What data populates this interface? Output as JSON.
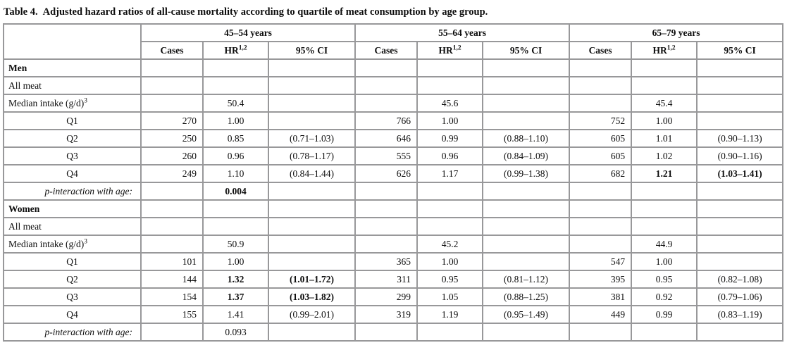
{
  "title": {
    "label": "Table 4.",
    "text": "Adjusted hazard ratios of all-cause mortality according to quartile of meat consumption by age group."
  },
  "table": {
    "age_groups": [
      "45–54 years",
      "55–64 years",
      "65–79 years"
    ],
    "sub_headers": {
      "cases": "Cases",
      "hr": "HR",
      "hr_sup": "1,2",
      "ci": "95% CI"
    },
    "rows": [
      {
        "label": "Men",
        "style": "section",
        "cells": [
          "",
          "",
          "",
          "",
          "",
          "",
          "",
          "",
          ""
        ]
      },
      {
        "label": "All meat",
        "style": "plain",
        "cells": [
          "",
          "",
          "",
          "",
          "",
          "",
          "",
          "",
          ""
        ]
      },
      {
        "label": "Median intake (g/d)",
        "label_sup": "3",
        "style": "plain",
        "cells": [
          "",
          "50.4",
          "",
          "",
          "45.6",
          "",
          "",
          "45.4",
          ""
        ]
      },
      {
        "label": "Q1",
        "style": "quartile",
        "cells": [
          "270",
          "1.00",
          "",
          "766",
          "1.00",
          "",
          "752",
          "1.00",
          ""
        ]
      },
      {
        "label": "Q2",
        "style": "quartile",
        "cells": [
          "250",
          "0.85",
          "(0.71–1.03)",
          "646",
          "0.99",
          "(0.88–1.10)",
          "605",
          "1.01",
          "(0.90–1.13)"
        ]
      },
      {
        "label": "Q3",
        "style": "quartile",
        "cells": [
          "260",
          "0.96",
          "(0.78–1.17)",
          "555",
          "0.96",
          "(0.84–1.09)",
          "605",
          "1.02",
          "(0.90–1.16)"
        ]
      },
      {
        "label": "Q4",
        "style": "quartile",
        "cells": [
          "249",
          "1.10",
          "(0.84–1.44)",
          "626",
          "1.17",
          "(0.99–1.38)",
          "682",
          "1.21",
          "(1.03–1.41)"
        ],
        "bold": [
          7,
          8
        ]
      },
      {
        "label": "p-interaction with age:",
        "style": "pvalue",
        "cells": [
          "",
          "0.004",
          "",
          "",
          "",
          "",
          "",
          "",
          ""
        ],
        "bold": [
          1
        ]
      },
      {
        "label": "Women",
        "style": "section",
        "cells": [
          "",
          "",
          "",
          "",
          "",
          "",
          "",
          "",
          ""
        ]
      },
      {
        "label": "All meat",
        "style": "plain",
        "cells": [
          "",
          "",
          "",
          "",
          "",
          "",
          "",
          "",
          ""
        ]
      },
      {
        "label": "Median intake (g/d)",
        "label_sup": "3",
        "style": "plain",
        "cells": [
          "",
          "50.9",
          "",
          "",
          "45.2",
          "",
          "",
          "44.9",
          ""
        ]
      },
      {
        "label": "Q1",
        "style": "quartile",
        "cells": [
          "101",
          "1.00",
          "",
          "365",
          "1.00",
          "",
          "547",
          "1.00",
          ""
        ]
      },
      {
        "label": "Q2",
        "style": "quartile",
        "cells": [
          "144",
          "1.32",
          "(1.01–1.72)",
          "311",
          "0.95",
          "(0.81–1.12)",
          "395",
          "0.95",
          "(0.82–1.08)"
        ],
        "bold": [
          1,
          2
        ]
      },
      {
        "label": "Q3",
        "style": "quartile",
        "cells": [
          "154",
          "1.37",
          "(1.03–1.82)",
          "299",
          "1.05",
          "(0.88–1.25)",
          "381",
          "0.92",
          "(0.79–1.06)"
        ],
        "bold": [
          1,
          2
        ]
      },
      {
        "label": "Q4",
        "style": "quartile",
        "cells": [
          "155",
          "1.41",
          "(0.99–2.01)",
          "319",
          "1.19",
          "(0.95–1.49)",
          "449",
          "0.99",
          "(0.83–1.19)"
        ]
      },
      {
        "label": "p-interaction with age:",
        "style": "pvalue",
        "cells": [
          "",
          "0.093",
          "",
          "",
          "",
          "",
          "",
          "",
          ""
        ]
      }
    ]
  }
}
